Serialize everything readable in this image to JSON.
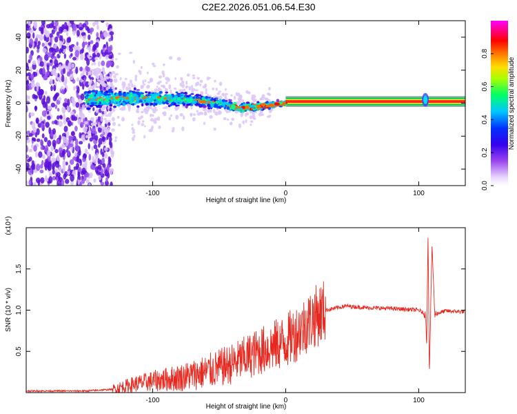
{
  "page_title": "C2E2.2026.051.06.54.E30",
  "chart_data": [
    {
      "type": "heatmap",
      "title": "C2E2.2026.051.06.54.E30",
      "xlabel": "Height of straight line (km)",
      "ylabel": "Frequency (Hz)",
      "xlim": [
        -195,
        135
      ],
      "ylim": [
        -50,
        50
      ],
      "x_ticks": [
        -100,
        0,
        100
      ],
      "x_tick_labels": [
        "-100",
        "0",
        "100"
      ],
      "y_ticks": [
        -40,
        -20,
        0,
        20,
        40
      ],
      "y_tick_labels": [
        "-40",
        "-20",
        "0",
        "20",
        "40"
      ],
      "colorbar": {
        "label": "Normalized spectral amplitude",
        "range": [
          0,
          1
        ],
        "ticks": [
          0.0,
          0.2,
          0.4,
          0.6,
          0.8
        ],
        "tick_labels": [
          "0.0",
          "0.2",
          "0.4",
          "0.6",
          "0.8"
        ],
        "colors": [
          "#ffffff",
          "#cc99ff",
          "#6600cc",
          "#0000ff",
          "#00ccff",
          "#00ff66",
          "#ccff00",
          "#ff9900",
          "#ff0000",
          "#ff00cc"
        ]
      },
      "ridge": {
        "description": "dominant frequency line vs height",
        "x": [
          -150,
          -130,
          -100,
          -70,
          -50,
          -35,
          -20,
          0,
          20,
          60,
          100,
          105,
          110,
          135
        ],
        "y": [
          2,
          3,
          3,
          2,
          0,
          -3,
          -2,
          0,
          1,
          1,
          1,
          3,
          0,
          1
        ]
      }
    },
    {
      "type": "line",
      "xlabel": "Height of straight line (km)",
      "ylabel": "SNR (10 * v/v)",
      "y_scale_label": "(x10⁴)",
      "xlim": [
        -195,
        135
      ],
      "ylim": [
        0,
        2.0
      ],
      "x_ticks": [
        -100,
        0,
        100
      ],
      "x_tick_labels": [
        "-100",
        "0",
        "100"
      ],
      "y_ticks": [
        0.5,
        1.0,
        1.5
      ],
      "y_tick_labels": [
        "0.5",
        "1.0",
        "1.5"
      ],
      "color": "#e8281e",
      "series": [
        {
          "name": "SNR",
          "x": [
            -195,
            -150,
            -130,
            -115,
            -100,
            -80,
            -60,
            -40,
            -20,
            0,
            10,
            20,
            30,
            45,
            60,
            80,
            100,
            105,
            106,
            107,
            108,
            110,
            112,
            120,
            135
          ],
          "y": [
            0.02,
            0.02,
            0.04,
            0.1,
            0.14,
            0.18,
            0.25,
            0.35,
            0.5,
            0.62,
            0.75,
            0.9,
            1.0,
            1.05,
            1.03,
            1.02,
            1.0,
            0.95,
            0.6,
            1.95,
            0.2,
            1.8,
            0.95,
            0.99,
            0.98
          ]
        }
      ]
    }
  ]
}
